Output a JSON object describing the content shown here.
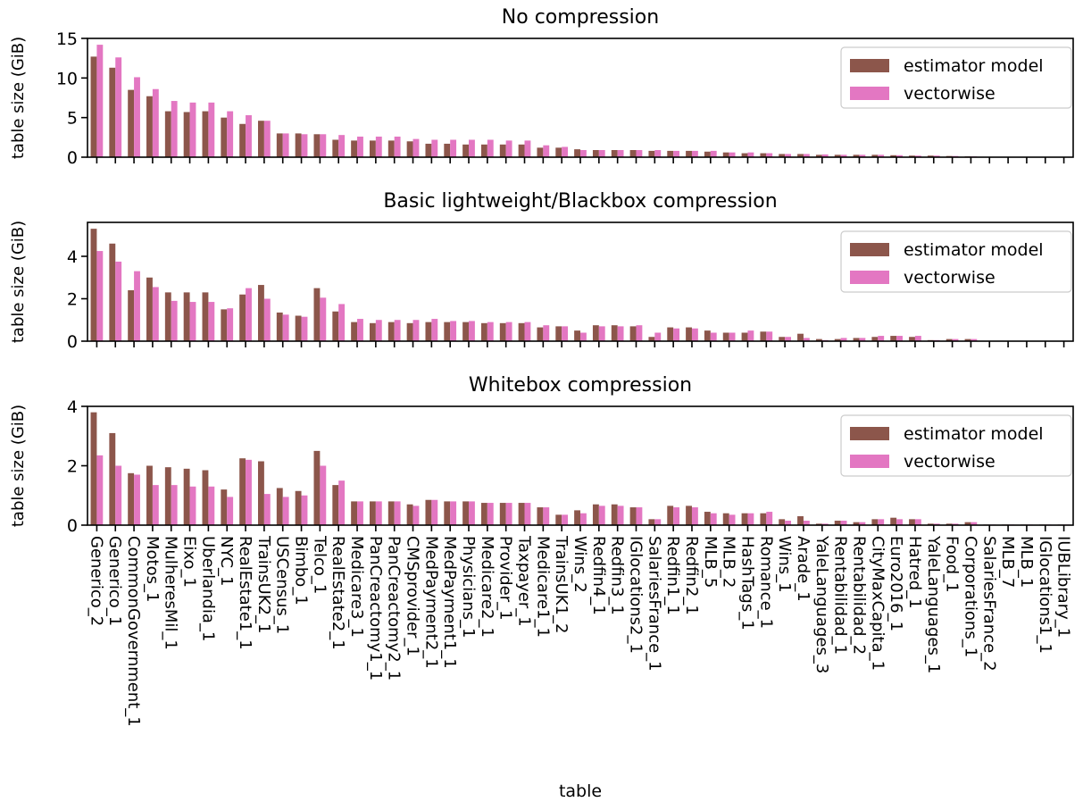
{
  "figure": {
    "xlabel": "table",
    "legend_location": "upper right",
    "series_colors": {
      "estimator model": "#8c564b",
      "vectorwise": "#e377c2"
    }
  },
  "chart_data": [
    {
      "type": "bar",
      "title": "No compression",
      "xlabel": "table",
      "ylabel": "table size (GiB)",
      "ylim": [
        0,
        15
      ],
      "yticks": [
        "0",
        "5",
        "10",
        "15"
      ],
      "grid": false,
      "legend": "upper right",
      "categories": [
        "Generico_2",
        "Generico_1",
        "CommonGovernment_1",
        "Motos_1",
        "MulheresMil_1",
        "Eixo_1",
        "Uberlandia_1",
        "NYC_1",
        "RealEstate1_1",
        "TrainsUK2_1",
        "USCensus_1",
        "Bimbo_1",
        "Telco_1",
        "RealEstate2_1",
        "Medicare3_1",
        "PanCreactomy1_1",
        "PanCreactomy2_1",
        "CMSprovider_1",
        "MedPayment2_1",
        "MedPayment1_1",
        "Physicians_1",
        "Medicare2_1",
        "Provider_1",
        "Taxpayer_1",
        "Medicare1_1",
        "TrainsUK1_2",
        "Wins_2",
        "Redfin4_1",
        "Redfin3_1",
        "IGlocations2_1",
        "SalariesFrance_1",
        "Redfin1_1",
        "Redfin2_1",
        "MLB_5",
        "MLB_2",
        "HashTags_1",
        "Romance_1",
        "Wins_1",
        "Arade_1",
        "YaleLanguages_3",
        "Rentabilidad_1",
        "Rentabilidad_2",
        "CityMaxCapita_1",
        "Euro2016_1",
        "Hatred_1",
        "YaleLanguages_1",
        "Food_1",
        "Corporations_1",
        "SalariesFrance_2",
        "MLB_7",
        "MLB_1",
        "IGlocations1_1",
        "IUBLibrary_1"
      ],
      "series": [
        {
          "name": "estimator model",
          "color": "#8c564b",
          "values": [
            12.7,
            11.3,
            8.5,
            7.7,
            5.8,
            5.7,
            5.8,
            5.0,
            4.2,
            4.6,
            3.0,
            3.0,
            2.9,
            2.2,
            2.1,
            2.1,
            2.1,
            2.0,
            1.7,
            1.7,
            1.6,
            1.6,
            1.6,
            1.6,
            1.2,
            1.2,
            1.0,
            0.9,
            0.9,
            0.9,
            0.8,
            0.8,
            0.8,
            0.7,
            0.6,
            0.5,
            0.5,
            0.4,
            0.4,
            0.3,
            0.3,
            0.3,
            0.3,
            0.25,
            0.2,
            0.2,
            0.15,
            0.1,
            0.05,
            0.05,
            0.05,
            0.05,
            0.03
          ]
        },
        {
          "name": "vectorwise",
          "color": "#e377c2",
          "values": [
            14.2,
            12.6,
            10.1,
            8.6,
            7.1,
            6.9,
            6.9,
            5.8,
            5.3,
            4.6,
            3.0,
            2.9,
            2.9,
            2.8,
            2.6,
            2.6,
            2.6,
            2.3,
            2.2,
            2.2,
            2.2,
            2.2,
            2.1,
            2.1,
            1.5,
            1.3,
            0.9,
            0.9,
            0.9,
            0.9,
            0.9,
            0.8,
            0.8,
            0.8,
            0.6,
            0.6,
            0.5,
            0.4,
            0.4,
            0.35,
            0.3,
            0.3,
            0.3,
            0.25,
            0.2,
            0.2,
            0.15,
            0.1,
            0.05,
            0.05,
            0.05,
            0.05,
            0.03
          ]
        }
      ]
    },
    {
      "type": "bar",
      "title": "Basic lightweight/Blackbox compression",
      "xlabel": "table",
      "ylabel": "table size (GiB)",
      "ylim": [
        0,
        5.6
      ],
      "yticks": [
        "0",
        "2",
        "4"
      ],
      "grid": false,
      "legend": "upper right",
      "categories": [
        "Generico_2",
        "Generico_1",
        "CommonGovernment_1",
        "Motos_1",
        "MulheresMil_1",
        "Eixo_1",
        "Uberlandia_1",
        "NYC_1",
        "RealEstate1_1",
        "TrainsUK2_1",
        "USCensus_1",
        "Bimbo_1",
        "Telco_1",
        "RealEstate2_1",
        "Medicare3_1",
        "PanCreactomy1_1",
        "PanCreactomy2_1",
        "CMSprovider_1",
        "MedPayment2_1",
        "MedPayment1_1",
        "Physicians_1",
        "Medicare2_1",
        "Provider_1",
        "Taxpayer_1",
        "Medicare1_1",
        "TrainsUK1_2",
        "Wins_2",
        "Redfin4_1",
        "Redfin3_1",
        "IGlocations2_1",
        "SalariesFrance_1",
        "Redfin1_1",
        "Redfin2_1",
        "MLB_5",
        "MLB_2",
        "HashTags_1",
        "Romance_1",
        "Wins_1",
        "Arade_1",
        "YaleLanguages_3",
        "Rentabilidad_1",
        "Rentabilidad_2",
        "CityMaxCapita_1",
        "Euro2016_1",
        "Hatred_1",
        "YaleLanguages_1",
        "Food_1",
        "Corporations_1",
        "SalariesFrance_2",
        "MLB_7",
        "MLB_1",
        "IGlocations1_1",
        "IUBLibrary_1"
      ],
      "series": [
        {
          "name": "estimator model",
          "color": "#8c564b",
          "values": [
            5.3,
            4.6,
            2.4,
            3.0,
            2.3,
            2.3,
            2.3,
            1.5,
            2.2,
            2.65,
            1.35,
            1.2,
            2.5,
            1.4,
            0.9,
            0.85,
            0.9,
            0.85,
            0.9,
            0.9,
            0.9,
            0.85,
            0.85,
            0.85,
            0.65,
            0.7,
            0.5,
            0.75,
            0.75,
            0.7,
            0.2,
            0.65,
            0.65,
            0.5,
            0.4,
            0.4,
            0.45,
            0.2,
            0.35,
            0.1,
            0.1,
            0.15,
            0.2,
            0.25,
            0.2,
            0.05,
            0.1,
            0.1,
            0.02,
            0.02,
            0.02,
            0.02,
            0.02
          ]
        },
        {
          "name": "vectorwise",
          "color": "#e377c2",
          "values": [
            4.25,
            3.75,
            3.3,
            2.55,
            1.9,
            1.85,
            1.85,
            1.55,
            2.5,
            2.0,
            1.25,
            1.15,
            2.05,
            1.75,
            1.05,
            1.0,
            1.0,
            1.0,
            1.05,
            0.95,
            0.95,
            0.9,
            0.9,
            0.9,
            0.75,
            0.7,
            0.4,
            0.7,
            0.7,
            0.75,
            0.4,
            0.6,
            0.6,
            0.4,
            0.4,
            0.5,
            0.45,
            0.2,
            0.15,
            0.05,
            0.15,
            0.15,
            0.25,
            0.25,
            0.25,
            0.05,
            0.1,
            0.1,
            0.02,
            0.02,
            0.02,
            0.02,
            0.02
          ]
        }
      ]
    },
    {
      "type": "bar",
      "title": "Whitebox compression",
      "xlabel": "table",
      "ylabel": "table size (GiB)",
      "ylim": [
        0,
        4.0
      ],
      "yticks": [
        "0",
        "2",
        "4"
      ],
      "grid": false,
      "legend": "upper right",
      "categories": [
        "Generico_2",
        "Generico_1",
        "CommonGovernment_1",
        "Motos_1",
        "MulheresMil_1",
        "Eixo_1",
        "Uberlandia_1",
        "NYC_1",
        "RealEstate1_1",
        "TrainsUK2_1",
        "USCensus_1",
        "Bimbo_1",
        "Telco_1",
        "RealEstate2_1",
        "Medicare3_1",
        "PanCreactomy1_1",
        "PanCreactomy2_1",
        "CMSprovider_1",
        "MedPayment2_1",
        "MedPayment1_1",
        "Physicians_1",
        "Medicare2_1",
        "Provider_1",
        "Taxpayer_1",
        "Medicare1_1",
        "TrainsUK1_2",
        "Wins_2",
        "Redfin4_1",
        "Redfin3_1",
        "IGlocations2_1",
        "SalariesFrance_1",
        "Redfin1_1",
        "Redfin2_1",
        "MLB_5",
        "MLB_2",
        "HashTags_1",
        "Romance_1",
        "Wins_1",
        "Arade_1",
        "YaleLanguages_3",
        "Rentabilidad_1",
        "Rentabilidad_2",
        "CityMaxCapita_1",
        "Euro2016_1",
        "Hatred_1",
        "YaleLanguages_1",
        "Food_1",
        "Corporations_1",
        "SalariesFrance_2",
        "MLB_7",
        "MLB_1",
        "IGlocations1_1",
        "IUBLibrary_1"
      ],
      "series": [
        {
          "name": "estimator model",
          "color": "#8c564b",
          "values": [
            3.8,
            3.1,
            1.75,
            2.0,
            1.95,
            1.9,
            1.85,
            1.2,
            2.25,
            2.15,
            1.25,
            1.15,
            2.5,
            1.35,
            0.8,
            0.8,
            0.8,
            0.7,
            0.85,
            0.8,
            0.8,
            0.75,
            0.75,
            0.75,
            0.6,
            0.35,
            0.5,
            0.7,
            0.7,
            0.6,
            0.2,
            0.65,
            0.65,
            0.45,
            0.4,
            0.4,
            0.4,
            0.2,
            0.3,
            0.05,
            0.15,
            0.1,
            0.2,
            0.25,
            0.2,
            0.05,
            0.05,
            0.1,
            0.02,
            0.02,
            0.02,
            0.02,
            0.02
          ]
        },
        {
          "name": "vectorwise",
          "color": "#e377c2",
          "values": [
            2.35,
            2.0,
            1.7,
            1.35,
            1.35,
            1.3,
            1.3,
            0.95,
            2.2,
            1.05,
            0.95,
            1.0,
            2.0,
            1.5,
            0.8,
            0.8,
            0.8,
            0.65,
            0.85,
            0.8,
            0.8,
            0.75,
            0.75,
            0.75,
            0.6,
            0.35,
            0.4,
            0.65,
            0.65,
            0.6,
            0.2,
            0.6,
            0.6,
            0.4,
            0.35,
            0.4,
            0.45,
            0.15,
            0.15,
            0.05,
            0.15,
            0.1,
            0.2,
            0.2,
            0.2,
            0.05,
            0.05,
            0.1,
            0.02,
            0.02,
            0.02,
            0.02,
            0.02
          ]
        }
      ]
    }
  ]
}
